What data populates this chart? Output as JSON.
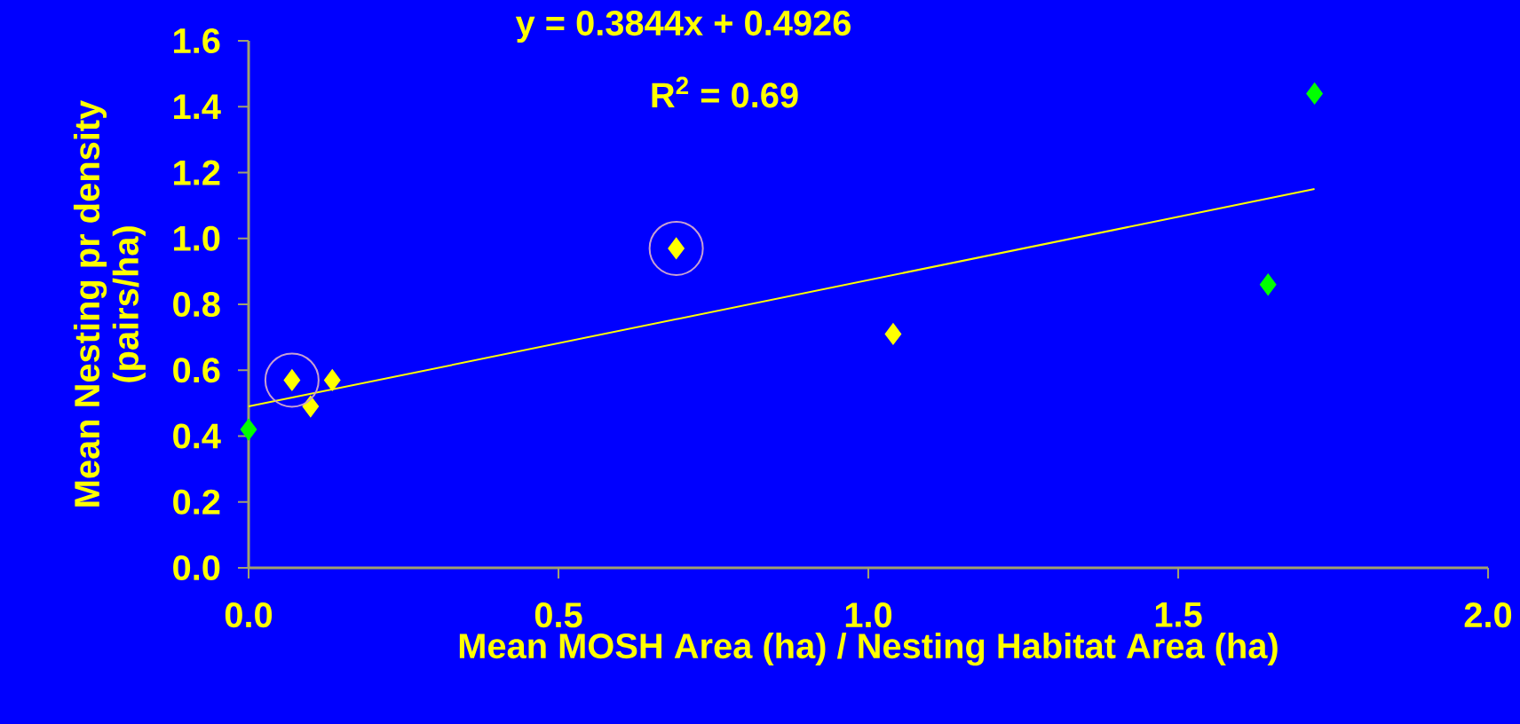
{
  "chart_data": {
    "type": "scatter",
    "xlabel": "Mean MOSH Area (ha) / Nesting Habitat Area (ha)",
    "ylabel": "Mean Nesting pr density\n(pairs/ha)",
    "annotations": [
      "y = 0.3844x + 0.4926",
      "R$^{2}$ = 0.69"
    ],
    "xlim": [
      0,
      2
    ],
    "xticks": [
      {
        "value": 0,
        "label": "0.0"
      },
      0.5,
      {
        "value": 1,
        "label": "1.0"
      },
      1.5,
      {
        "value": 2,
        "label": "2.0"
      }
    ],
    "ylim": [
      0,
      1.6
    ],
    "yticks": [
      {
        "value": 0,
        "label": "0.0"
      },
      0.2,
      0.4,
      0.6,
      0.8,
      {
        "value": 1,
        "label": "1.0"
      },
      1.2,
      1.4,
      1.6
    ],
    "marker": "diamond",
    "grid": false,
    "series": [
      {
        "color": "#ffff00",
        "x": [
          0.07,
          0.1,
          0.135,
          0.69,
          1.04
        ],
        "values": [
          0.57,
          0.49,
          0.57,
          0.97,
          0.71
        ]
      },
      {
        "color": "#00ff00",
        "x": [
          0,
          1.645,
          1.72
        ],
        "values": [
          0.42,
          0.86,
          1.44
        ]
      },
      {
        "type": "line",
        "color": "#ffff00",
        "marker": "none",
        "x": [
          0,
          1.72
        ],
        "values": [
          0.49,
          1.15
        ]
      },
      {
        "color": "#c8a0d0",
        "marker": "circle",
        "x": [
          0.07,
          0.69
        ],
        "values": [
          0.57,
          0.97
        ]
      }
    ]
  }
}
